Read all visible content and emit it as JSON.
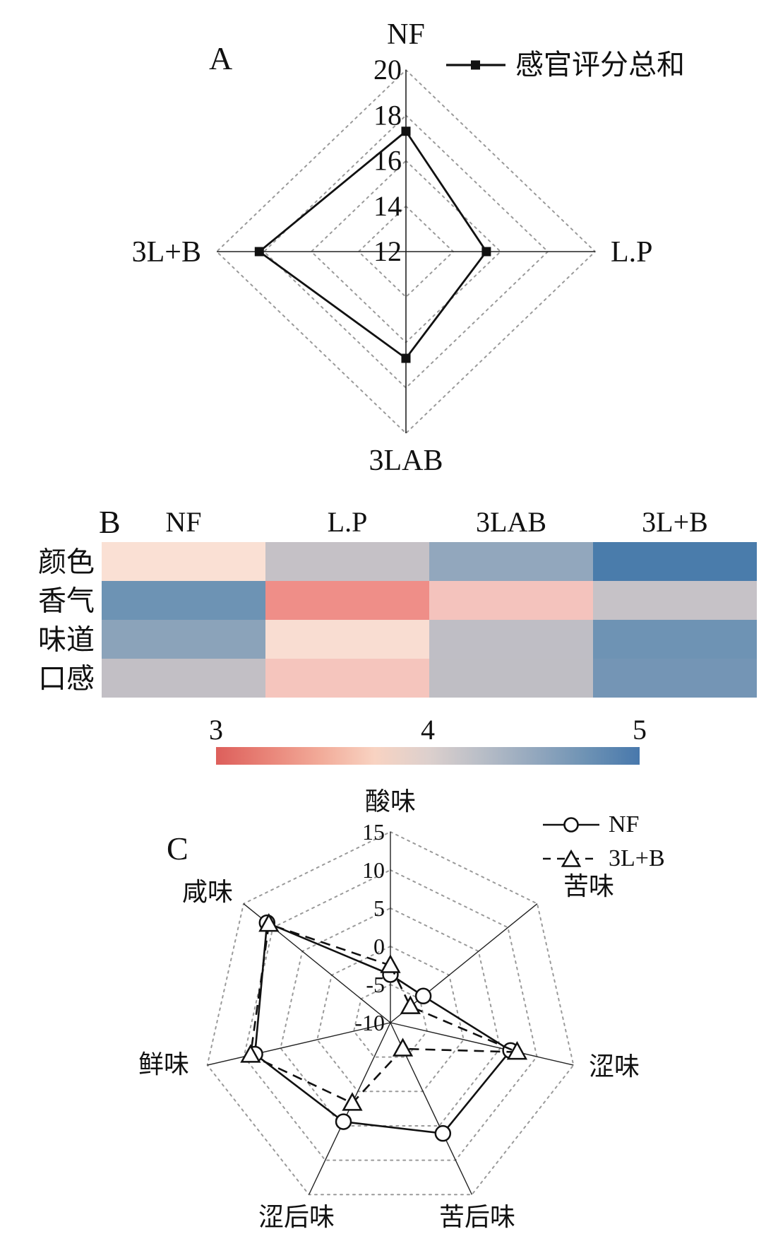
{
  "figure": {
    "panelA": {
      "label": "A",
      "legend_label": "感官评分总和"
    },
    "panelB": {
      "label": "B"
    },
    "panelC": {
      "label": "C",
      "legend": [
        {
          "label": "NF"
        },
        {
          "label": "3L+B"
        }
      ]
    }
  },
  "chart_data": [
    {
      "type": "radar",
      "panel": "A",
      "legend": [
        "感官评分总和"
      ],
      "legend_position": "top-right",
      "grid": "dashed-diamonds",
      "axes": [
        "NF",
        "L.P",
        "3LAB",
        "3L+B"
      ],
      "rlim": [
        12,
        20
      ],
      "ticks": [
        12,
        14,
        16,
        18,
        20
      ],
      "series": [
        {
          "name": "感官评分总和",
          "marker": "square",
          "line": "solid",
          "values": [
            17.3,
            15.4,
            16.7,
            18.2
          ]
        }
      ]
    },
    {
      "type": "heatmap",
      "panel": "B",
      "columns": [
        "NF",
        "L.P",
        "3LAB",
        "3L+B"
      ],
      "rows": [
        "颜色",
        "香气",
        "味道",
        "口感"
      ],
      "values": [
        [
          3.7,
          4.0,
          4.3,
          4.8
        ],
        [
          4.5,
          3.3,
          3.6,
          4.0
        ],
        [
          4.3,
          3.7,
          4.0,
          4.5
        ],
        [
          4.0,
          3.6,
          4.0,
          4.4
        ]
      ],
      "cell_colors": [
        [
          "#fae0d4",
          "#c5c1c6",
          "#92a7bd",
          "#4a7cab"
        ],
        [
          "#6d93b4",
          "#ef8e88",
          "#f4c3bd",
          "#c6c2c7"
        ],
        [
          "#8ba3ba",
          "#f9ddd2",
          "#bfbec5",
          "#6e93b4"
        ],
        [
          "#c2bfc5",
          "#f5c5bd",
          "#bfbec4",
          "#7495b5"
        ]
      ],
      "colorbar": {
        "range": [
          3,
          5
        ],
        "ticks": [
          "3",
          "4",
          "5"
        ],
        "gradient": [
          "#dd5f5b",
          "#e98579",
          "#f2ac9a",
          "#f8d3c2",
          "#ddd0cd",
          "#b9bec7",
          "#94a8be",
          "#6d92b4",
          "#4878ac"
        ]
      }
    },
    {
      "type": "radar",
      "panel": "C",
      "legend": [
        "NF",
        "3L+B"
      ],
      "legend_position": "top-right",
      "grid": "dashed-heptagons",
      "axes": [
        "酸味",
        "苦味",
        "涩味",
        "苦后味",
        "涩后味",
        "鲜味",
        "咸味"
      ],
      "rlim": [
        -10,
        15
      ],
      "ticks": [
        15,
        10,
        5,
        0,
        -5,
        -10
      ],
      "series": [
        {
          "name": "NF",
          "marker": "circle",
          "line": "solid",
          "values": [
            -3.7,
            -4.4,
            6.4,
            6.1,
            4.4,
            8.5,
            11.0
          ]
        },
        {
          "name": "3L+B",
          "marker": "triangle",
          "line": "dashed",
          "values": [
            -2.5,
            -6.6,
            7.3,
            -6.2,
            1.7,
            9.1,
            10.7
          ]
        }
      ]
    }
  ]
}
